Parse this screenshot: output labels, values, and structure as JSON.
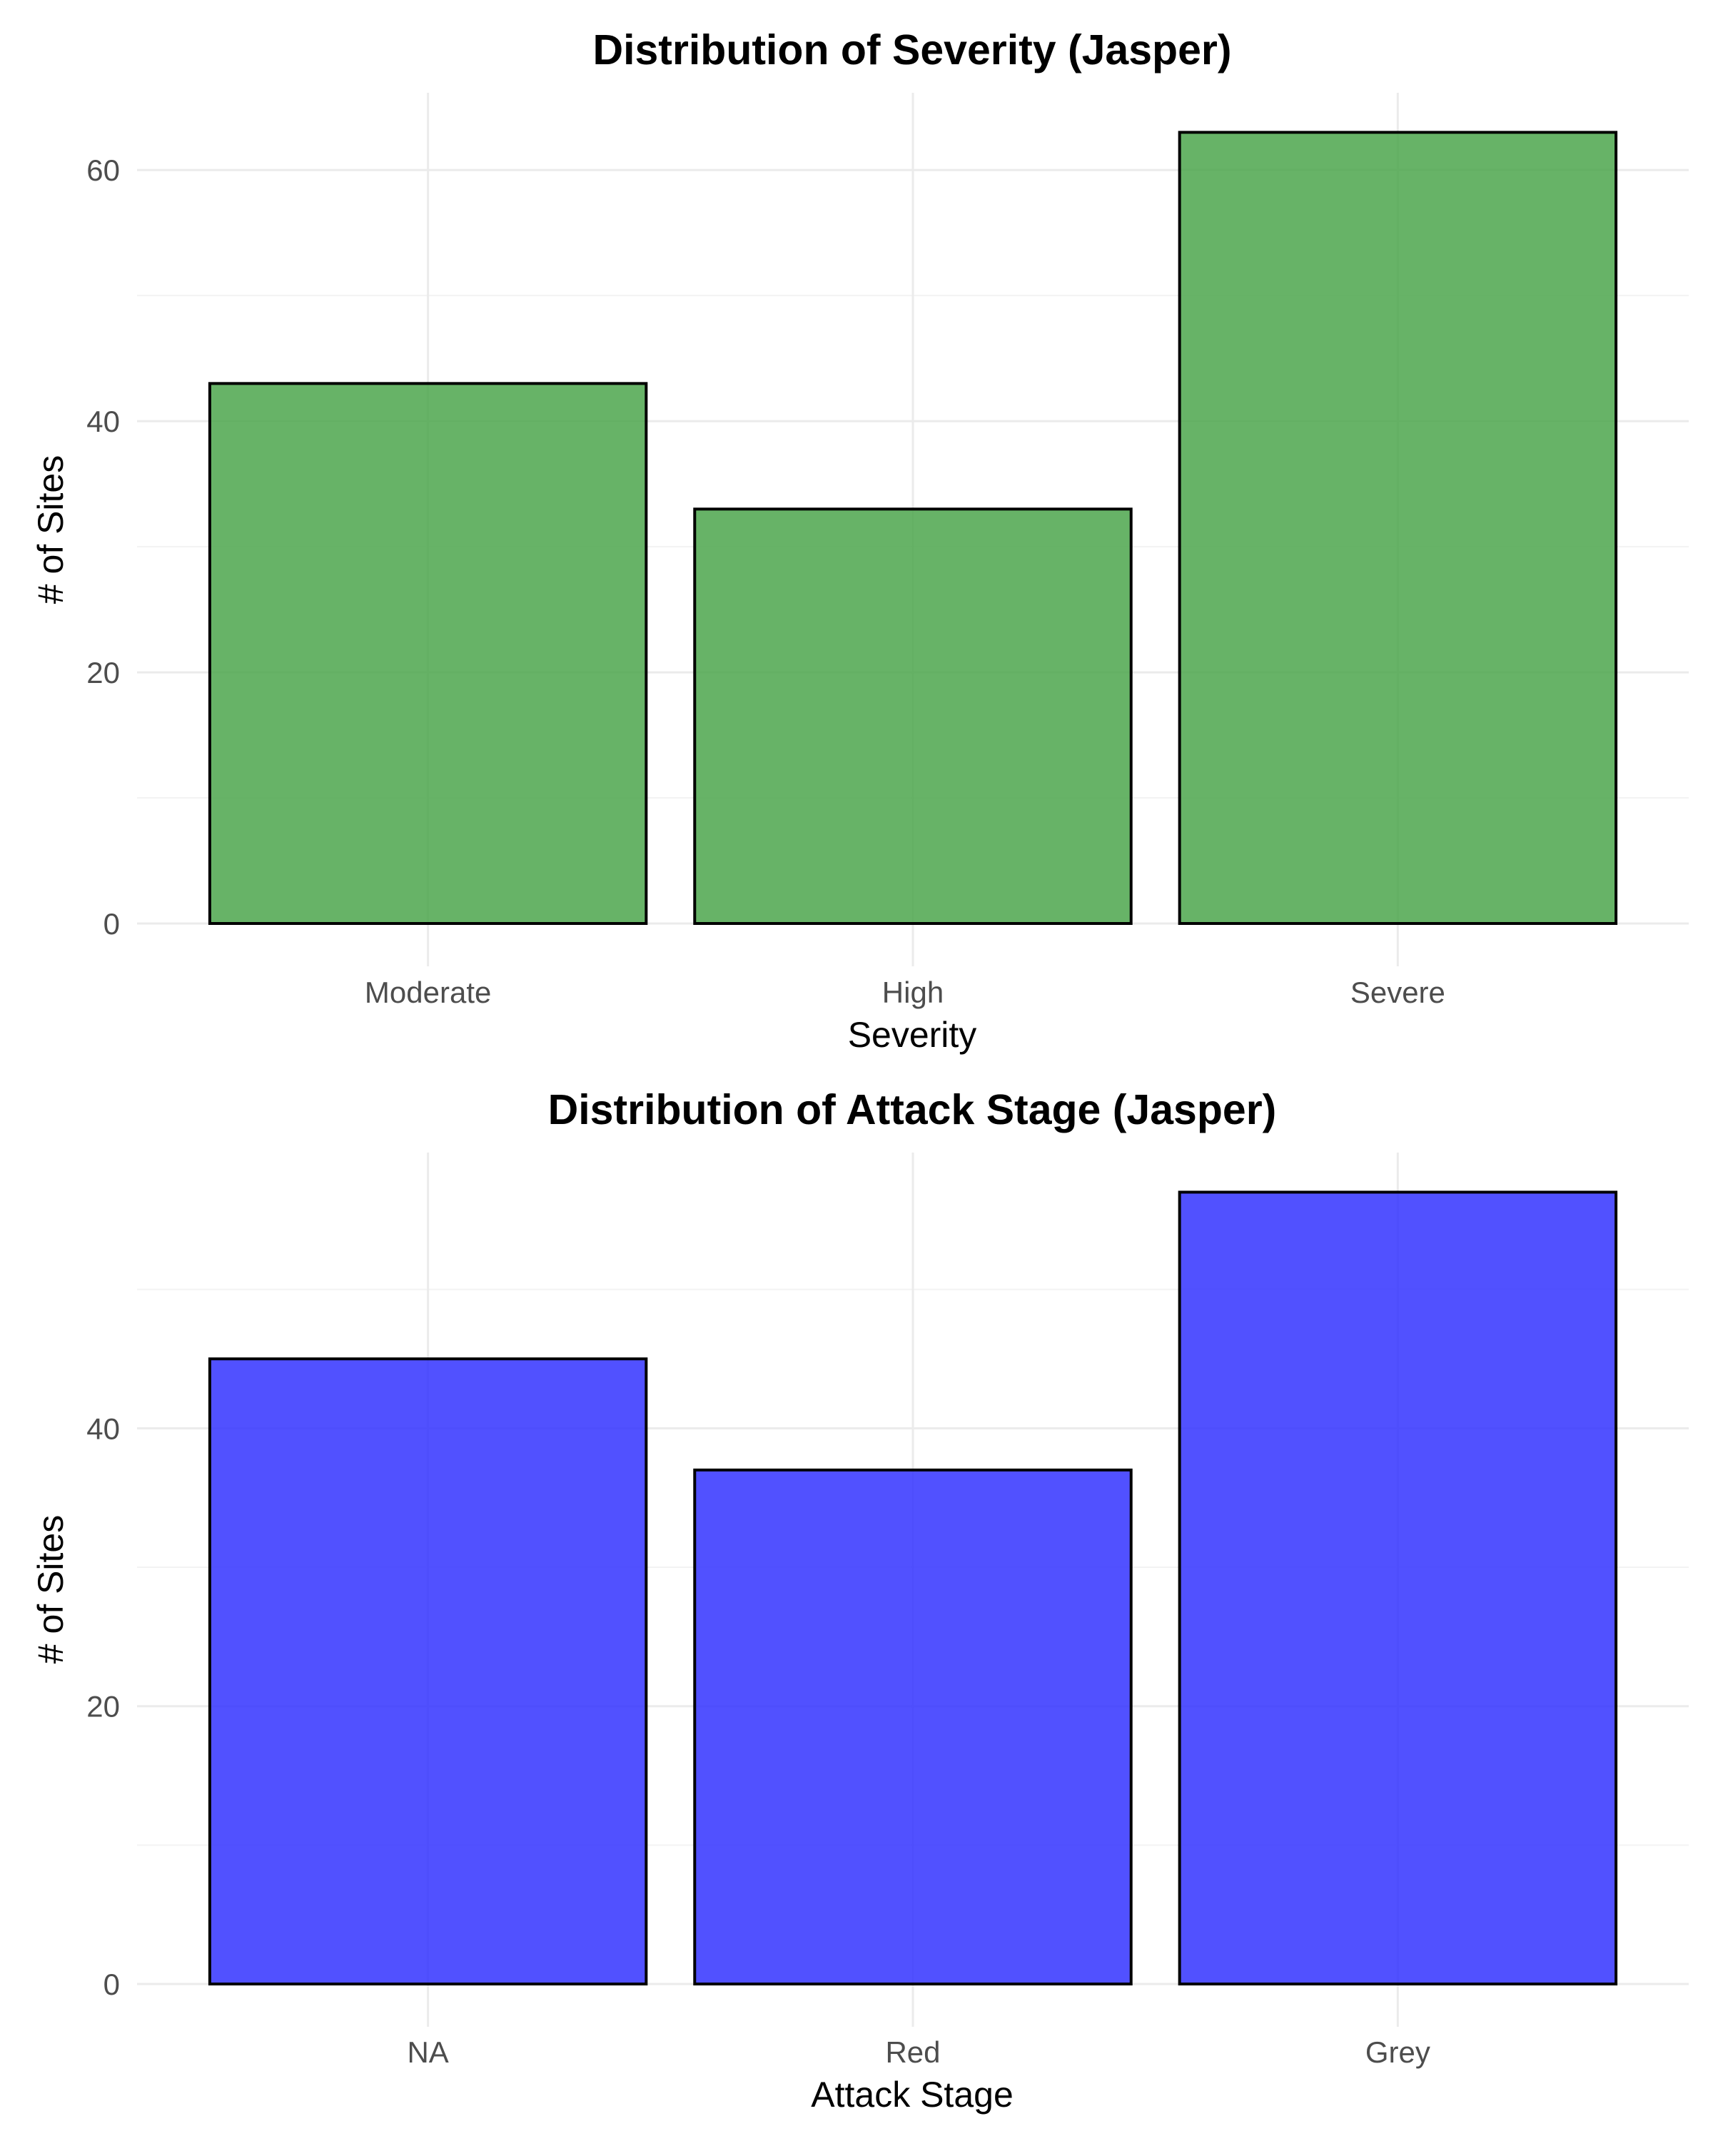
{
  "chart_data": [
    {
      "type": "bar",
      "title": "Distribution of Severity (Jasper)",
      "xlabel": "Severity",
      "ylabel": "# of Sites",
      "categories": [
        "Moderate",
        "High",
        "Severe"
      ],
      "values": [
        43,
        33,
        63
      ],
      "ylim": [
        0,
        66.15
      ],
      "yticks": [
        0,
        20,
        40,
        60
      ],
      "bar_color": "#4CA64C",
      "grid": true,
      "legend": "none"
    },
    {
      "type": "bar",
      "title": "Distribution of Attack Stage (Jasper)",
      "xlabel": "Attack Stage",
      "ylabel": "# of Sites",
      "categories": [
        "NA",
        "Red",
        "Grey"
      ],
      "values": [
        45,
        37,
        57
      ],
      "ylim": [
        0,
        59.85
      ],
      "yticks": [
        0,
        20,
        40
      ],
      "bar_color": "#3333FF",
      "grid": true,
      "legend": "none"
    }
  ]
}
